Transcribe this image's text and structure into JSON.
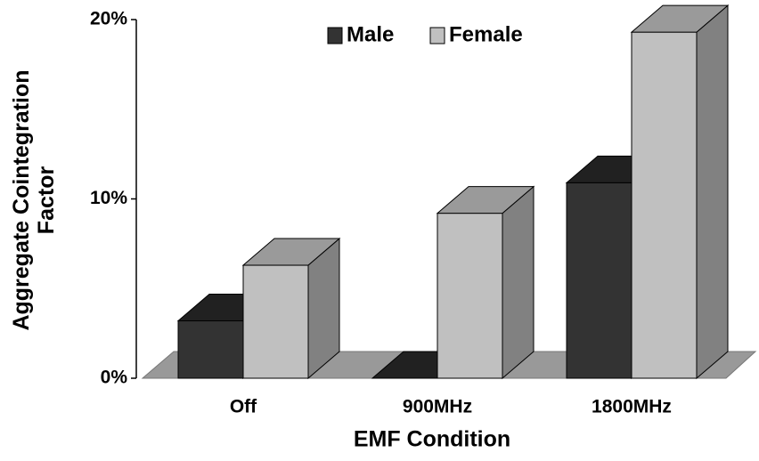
{
  "chart_data": {
    "type": "bar3d",
    "xlabel": "EMF Condition",
    "ylabel": "Aggregate Cointegration Factor",
    "categories": [
      "Off",
      "900MHz",
      "1800MHz"
    ],
    "series": [
      {
        "name": "Male",
        "color": "#333333",
        "values": [
          3.2,
          0,
          10.9
        ]
      },
      {
        "name": "Female",
        "color": "#c0c0c0",
        "values": [
          6.3,
          9.2,
          19.3
        ]
      }
    ],
    "ylim": [
      0,
      20
    ],
    "yticks": [
      {
        "value": 0,
        "label": "0%"
      },
      {
        "value": 10,
        "label": "10%"
      },
      {
        "value": 20,
        "label": "20%"
      }
    ],
    "legend": "top"
  }
}
